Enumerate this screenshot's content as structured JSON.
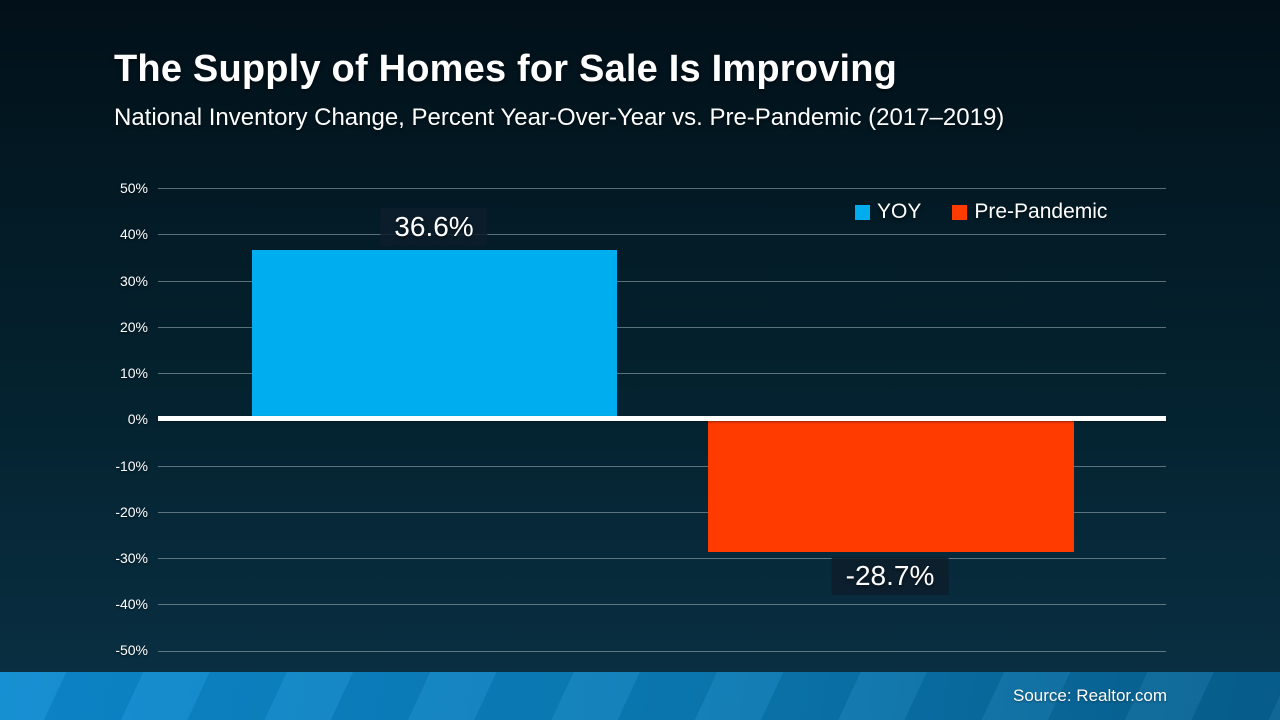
{
  "header": {
    "title": "The Supply of Homes for Sale Is Improving",
    "subtitle": "National Inventory Change, Percent Year-Over-Year vs. Pre-Pandemic (2017–2019)"
  },
  "chart_data": {
    "type": "bar",
    "title": "The Supply of Homes for Sale Is Improving",
    "subtitle": "National Inventory Change, Percent Year-Over-Year vs. Pre-Pandemic (2017–2019)",
    "categories": [
      "YOY",
      "Pre-Pandemic"
    ],
    "values": [
      36.6,
      -28.7
    ],
    "data_labels": [
      "36.6%",
      "-28.7%"
    ],
    "series": [
      {
        "name": "YOY",
        "value": 36.6,
        "color": "#00AEEF"
      },
      {
        "name": "Pre-Pandemic",
        "value": -28.7,
        "color": "#FF3B00"
      }
    ],
    "ylim": [
      -50,
      50
    ],
    "y_tick_step": 10,
    "y_ticks": [
      "50%",
      "40%",
      "30%",
      "20%",
      "10%",
      "0%",
      "-10%",
      "-20%",
      "-30%",
      "-40%",
      "-50%"
    ],
    "grid": true,
    "legend_position": "top-right",
    "zero_line_color": "#FFFFFF"
  },
  "footer": {
    "source": "Source: Realtor.com"
  },
  "colors": {
    "yoy_blue": "#00AEEF",
    "pre_pandemic_orange": "#FF3B00",
    "background_top": "#021019",
    "background_bottom": "#0A3145",
    "footer_strip_left": "#0D8BD1",
    "footer_strip_right": "#066090",
    "gridline": "#A4B5BB",
    "zero_line": "#FFFFFF"
  }
}
